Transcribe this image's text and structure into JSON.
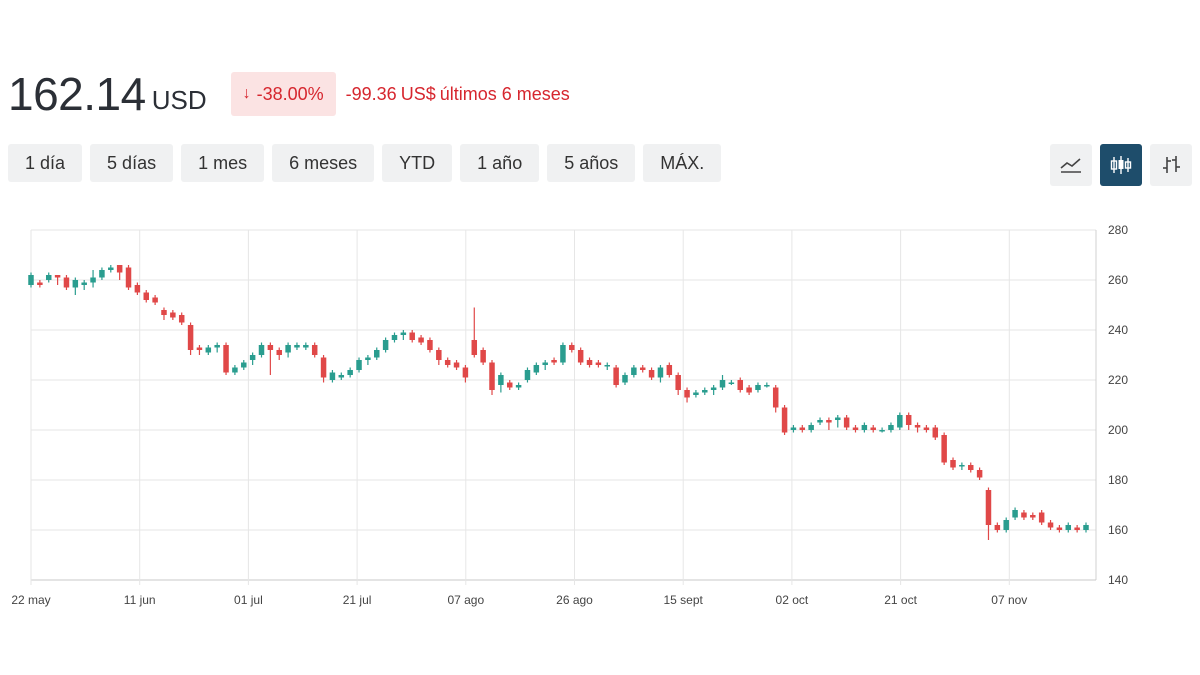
{
  "header": {
    "price": "162.14",
    "currency": "USD",
    "change_percent": "-38.00%",
    "change_arrow": "↓",
    "change_value": "-99.36",
    "change_currency": "US$",
    "change_period": "últimos 6 meses"
  },
  "ranges": [
    "1 día",
    "5 días",
    "1 mes",
    "6 meses",
    "YTD",
    "1 año",
    "5 años",
    "MÁX."
  ],
  "active_range": "6 meses",
  "chart_types": [
    {
      "icon": "line-chart-icon",
      "active": false
    },
    {
      "icon": "candlestick-chart-icon",
      "active": true
    },
    {
      "icon": "ohlc-bar-chart-icon",
      "active": false
    }
  ],
  "colors": {
    "up": "#2a9d8f",
    "down": "#e04848",
    "accent": "#1e4d6b",
    "negative_text": "#d6262e"
  },
  "chart_data": {
    "type": "candlestick",
    "x_tick_labels": [
      "22 may",
      "11 jun",
      "01 jul",
      "21 jul",
      "07 ago",
      "26 ago",
      "15 sept",
      "02 oct",
      "21 oct",
      "07 nov"
    ],
    "y_tick_labels": [
      "140",
      "160",
      "180",
      "200",
      "220",
      "240",
      "260",
      "280"
    ],
    "ylim": [
      140,
      280
    ],
    "y_axis_side": "right",
    "grid": true,
    "candles": [
      [
        258,
        262,
        263,
        257
      ],
      [
        259,
        258,
        260,
        257
      ],
      [
        260,
        262,
        263,
        259
      ],
      [
        262,
        261,
        262,
        258
      ],
      [
        261,
        257,
        262,
        256
      ],
      [
        257,
        260,
        261,
        254
      ],
      [
        258,
        259,
        260,
        256
      ],
      [
        259,
        261,
        264,
        257
      ],
      [
        261,
        264,
        265,
        260
      ],
      [
        264,
        265,
        266,
        263
      ],
      [
        266,
        263,
        266,
        260
      ],
      [
        265,
        257,
        266,
        256
      ],
      [
        258,
        255,
        259,
        254
      ],
      [
        255,
        252,
        256,
        251
      ],
      [
        253,
        251,
        254,
        250
      ],
      [
        248,
        246,
        249,
        244
      ],
      [
        247,
        245,
        248,
        244
      ],
      [
        246,
        243,
        247,
        242
      ],
      [
        242,
        232,
        243,
        230
      ],
      [
        233,
        232,
        234,
        230
      ],
      [
        231,
        233,
        234,
        230
      ],
      [
        233,
        234,
        235,
        231
      ],
      [
        234,
        223,
        235,
        222
      ],
      [
        223,
        225,
        226,
        222
      ],
      [
        225,
        227,
        228,
        224
      ],
      [
        228,
        230,
        231,
        226
      ],
      [
        230,
        234,
        235,
        229
      ],
      [
        234,
        232,
        235,
        222
      ],
      [
        232,
        230,
        233,
        228
      ],
      [
        231,
        234,
        235,
        229
      ],
      [
        233,
        234,
        235,
        232
      ],
      [
        233,
        234,
        235,
        232
      ],
      [
        234,
        230,
        235,
        229
      ],
      [
        229,
        221,
        230,
        219
      ],
      [
        220,
        223,
        224,
        219
      ],
      [
        221,
        222,
        223,
        220
      ],
      [
        222,
        224,
        225,
        221
      ],
      [
        224,
        228,
        229,
        223
      ],
      [
        228,
        229,
        230,
        226
      ],
      [
        229,
        232,
        233,
        228
      ],
      [
        232,
        236,
        237,
        231
      ],
      [
        236,
        238,
        239,
        235
      ],
      [
        238,
        239,
        240,
        236
      ],
      [
        239,
        236,
        240,
        235
      ],
      [
        237,
        235,
        238,
        234
      ],
      [
        236,
        232,
        237,
        231
      ],
      [
        232,
        228,
        233,
        226
      ],
      [
        228,
        226,
        229,
        225
      ],
      [
        227,
        225,
        228,
        224
      ],
      [
        225,
        221,
        226,
        219
      ],
      [
        236,
        230,
        249,
        229
      ],
      [
        232,
        227,
        233,
        226
      ],
      [
        227,
        216,
        228,
        214
      ],
      [
        218,
        222,
        223,
        215
      ],
      [
        219,
        217,
        220,
        216
      ],
      [
        217,
        218,
        219,
        216
      ],
      [
        220,
        224,
        225,
        219
      ],
      [
        223,
        226,
        227,
        222
      ],
      [
        226,
        227,
        228,
        224
      ],
      [
        228,
        227,
        229,
        226
      ],
      [
        227,
        234,
        235,
        226
      ],
      [
        234,
        232,
        235,
        231
      ],
      [
        232,
        227,
        233,
        226
      ],
      [
        228,
        226,
        229,
        225
      ],
      [
        227,
        226,
        228,
        225
      ],
      [
        226,
        226,
        227,
        224
      ],
      [
        225,
        218,
        226,
        217
      ],
      [
        219,
        222,
        223,
        218
      ],
      [
        222,
        225,
        226,
        221
      ],
      [
        225,
        224,
        226,
        223
      ],
      [
        224,
        221,
        225,
        220
      ],
      [
        221,
        225,
        226,
        219
      ],
      [
        226,
        222,
        227,
        221
      ],
      [
        222,
        216,
        223,
        214
      ],
      [
        216,
        213,
        217,
        211
      ],
      [
        214,
        215,
        216,
        213
      ],
      [
        215,
        216,
        217,
        214
      ],
      [
        216,
        217,
        218,
        214
      ],
      [
        217,
        220,
        222,
        216
      ],
      [
        219,
        219,
        220,
        218
      ],
      [
        220,
        216,
        221,
        215
      ],
      [
        217,
        215,
        218,
        214
      ],
      [
        216,
        218,
        219,
        215
      ],
      [
        218,
        218,
        219,
        217
      ],
      [
        217,
        209,
        218,
        207
      ],
      [
        209,
        199,
        210,
        198
      ],
      [
        200,
        201,
        202,
        199
      ],
      [
        201,
        200,
        202,
        199
      ],
      [
        200,
        202,
        203,
        199
      ],
      [
        203,
        204,
        205,
        202
      ],
      [
        204,
        203,
        205,
        200
      ],
      [
        204,
        205,
        206,
        201
      ],
      [
        205,
        201,
        206,
        200
      ],
      [
        201,
        200,
        202,
        199
      ],
      [
        200,
        202,
        203,
        199
      ],
      [
        201,
        200,
        202,
        199
      ],
      [
        200,
        200,
        201,
        199
      ],
      [
        200,
        202,
        203,
        199
      ],
      [
        201,
        206,
        207,
        200
      ],
      [
        206,
        202,
        207,
        200
      ],
      [
        202,
        201,
        203,
        199
      ],
      [
        201,
        200,
        202,
        199
      ],
      [
        201,
        197,
        202,
        196
      ],
      [
        198,
        187,
        199,
        186
      ],
      [
        188,
        185,
        189,
        184
      ],
      [
        186,
        186,
        187,
        184
      ],
      [
        186,
        184,
        187,
        183
      ],
      [
        184,
        181,
        185,
        180
      ],
      [
        176,
        162,
        177,
        156
      ],
      [
        162,
        160,
        163,
        159
      ],
      [
        160,
        164,
        165,
        159
      ],
      [
        165,
        168,
        169,
        164
      ],
      [
        167,
        165,
        168,
        164
      ],
      [
        166,
        165,
        167,
        164
      ],
      [
        167,
        163,
        168,
        162
      ],
      [
        163,
        161,
        164,
        160
      ],
      [
        161,
        160,
        162,
        159
      ],
      [
        160,
        162,
        163,
        159
      ],
      [
        161,
        160,
        162,
        159
      ],
      [
        160,
        162,
        163,
        159
      ]
    ]
  }
}
